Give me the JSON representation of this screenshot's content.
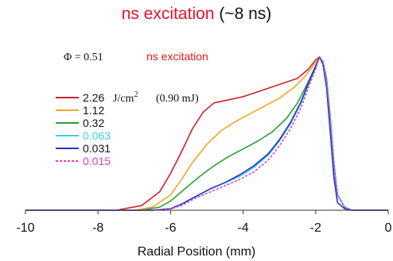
{
  "header": {
    "title_main": "ns excitation",
    "title_sub": "(~8 ns)"
  },
  "annotations": {
    "phi": "Φ = 0.51",
    "excitation": "ns excitation",
    "excitation_color": "#e81b1b"
  },
  "legend_unit": "J/cm",
  "legend_unit_exp": "2",
  "legend_energy": "(0.90 mJ)",
  "chart_data": {
    "type": "line",
    "title": "ns excitation (~8 ns)",
    "xlabel": "Radial Position (mm)",
    "ylabel": "",
    "xlim": [
      -10,
      0
    ],
    "ylim": [
      0,
      1.05
    ],
    "xticks": [
      -10,
      -8,
      -6,
      -4,
      -2,
      0
    ],
    "xtick_labels": [
      "-10",
      "-8",
      "-6",
      "-4",
      "-2",
      "0"
    ],
    "legend_position": "upper-left",
    "grid": false,
    "series": [
      {
        "name": "2.26",
        "color": "#d0202a",
        "dash": false,
        "x": [
          -10,
          -7.5,
          -6.8,
          -6.3,
          -6.0,
          -5.7,
          -5.4,
          -5.1,
          -4.8,
          -4.4,
          -4.0,
          -3.5,
          -3.0,
          -2.5,
          -2.2,
          -2.0,
          -1.9,
          -1.8,
          -1.7,
          -1.6,
          -1.5,
          -1.4,
          -1.2,
          -1.0,
          -0.5,
          0
        ],
        "y": [
          0,
          0,
          0.03,
          0.12,
          0.24,
          0.38,
          0.53,
          0.64,
          0.7,
          0.72,
          0.74,
          0.78,
          0.82,
          0.86,
          0.92,
          0.98,
          1.0,
          0.97,
          0.85,
          0.6,
          0.3,
          0.1,
          0.02,
          0,
          0,
          0
        ]
      },
      {
        "name": "1.12",
        "color": "#f0a828",
        "dash": false,
        "x": [
          -10,
          -7.0,
          -6.5,
          -6.0,
          -5.7,
          -5.4,
          -5.0,
          -4.6,
          -4.2,
          -3.8,
          -3.4,
          -3.0,
          -2.6,
          -2.3,
          -2.1,
          -2.0,
          -1.9,
          -1.8,
          -1.7,
          -1.6,
          -1.5,
          -1.4,
          -1.2,
          -1.0,
          -0.5,
          0
        ],
        "y": [
          0,
          0,
          0.02,
          0.1,
          0.2,
          0.31,
          0.43,
          0.52,
          0.58,
          0.63,
          0.68,
          0.73,
          0.8,
          0.87,
          0.93,
          0.97,
          1.0,
          0.96,
          0.84,
          0.6,
          0.3,
          0.1,
          0.02,
          0,
          0,
          0
        ]
      },
      {
        "name": "0.32",
        "color": "#2e9e3a",
        "dash": false,
        "x": [
          -10,
          -6.8,
          -6.3,
          -6.0,
          -5.6,
          -5.2,
          -4.8,
          -4.4,
          -4.0,
          -3.6,
          -3.2,
          -2.8,
          -2.5,
          -2.2,
          -2.0,
          -1.9,
          -1.8,
          -1.7,
          -1.6,
          -1.5,
          -1.4,
          -1.2,
          -1.0,
          -0.5,
          0
        ],
        "y": [
          0,
          0,
          0.02,
          0.06,
          0.14,
          0.22,
          0.29,
          0.35,
          0.4,
          0.45,
          0.51,
          0.6,
          0.7,
          0.84,
          0.94,
          1.0,
          0.97,
          0.86,
          0.62,
          0.32,
          0.1,
          0.02,
          0,
          0,
          0
        ]
      },
      {
        "name": "0.063",
        "color": "#40d0e0",
        "dash": false,
        "x": [
          -10,
          -6.5,
          -6.0,
          -5.7,
          -5.3,
          -4.9,
          -4.5,
          -4.1,
          -3.7,
          -3.3,
          -3.0,
          -2.7,
          -2.4,
          -2.2,
          -2.0,
          -1.9,
          -1.8,
          -1.7,
          -1.6,
          -1.5,
          -1.4,
          -1.2,
          -1.0,
          -0.5,
          0
        ],
        "y": [
          0,
          0,
          0.01,
          0.04,
          0.09,
          0.14,
          0.18,
          0.22,
          0.28,
          0.36,
          0.45,
          0.56,
          0.7,
          0.82,
          0.93,
          1.0,
          0.96,
          0.84,
          0.6,
          0.3,
          0.1,
          0.02,
          0,
          0,
          0
        ]
      },
      {
        "name": "0.031",
        "color": "#2035c8",
        "dash": false,
        "x": [
          -10,
          -6.5,
          -6.0,
          -5.7,
          -5.3,
          -4.9,
          -4.5,
          -4.1,
          -3.7,
          -3.3,
          -3.0,
          -2.7,
          -2.4,
          -2.2,
          -2.0,
          -1.9,
          -1.8,
          -1.7,
          -1.6,
          -1.5,
          -1.4,
          -1.2,
          -1.0,
          -0.5,
          0
        ],
        "y": [
          0,
          0,
          0.01,
          0.04,
          0.09,
          0.14,
          0.18,
          0.23,
          0.29,
          0.37,
          0.46,
          0.57,
          0.71,
          0.83,
          0.94,
          1.0,
          0.95,
          0.8,
          0.52,
          0.22,
          0.05,
          0.01,
          0,
          0,
          0
        ]
      },
      {
        "name": "0.015",
        "color": "#e040c0",
        "dash": true,
        "x": [
          -10,
          -6.5,
          -6.0,
          -5.7,
          -5.3,
          -4.9,
          -4.5,
          -4.1,
          -3.7,
          -3.3,
          -3.0,
          -2.7,
          -2.4,
          -2.2,
          -2.0,
          -1.9,
          -1.8,
          -1.7,
          -1.6,
          -1.5,
          -1.4,
          -1.2,
          -1.0,
          -0.5,
          0
        ],
        "y": [
          0,
          0,
          0.01,
          0.03,
          0.08,
          0.12,
          0.16,
          0.2,
          0.25,
          0.33,
          0.42,
          0.53,
          0.67,
          0.8,
          0.92,
          1.0,
          0.96,
          0.84,
          0.6,
          0.3,
          0.1,
          0.02,
          0,
          0,
          0
        ]
      }
    ]
  }
}
